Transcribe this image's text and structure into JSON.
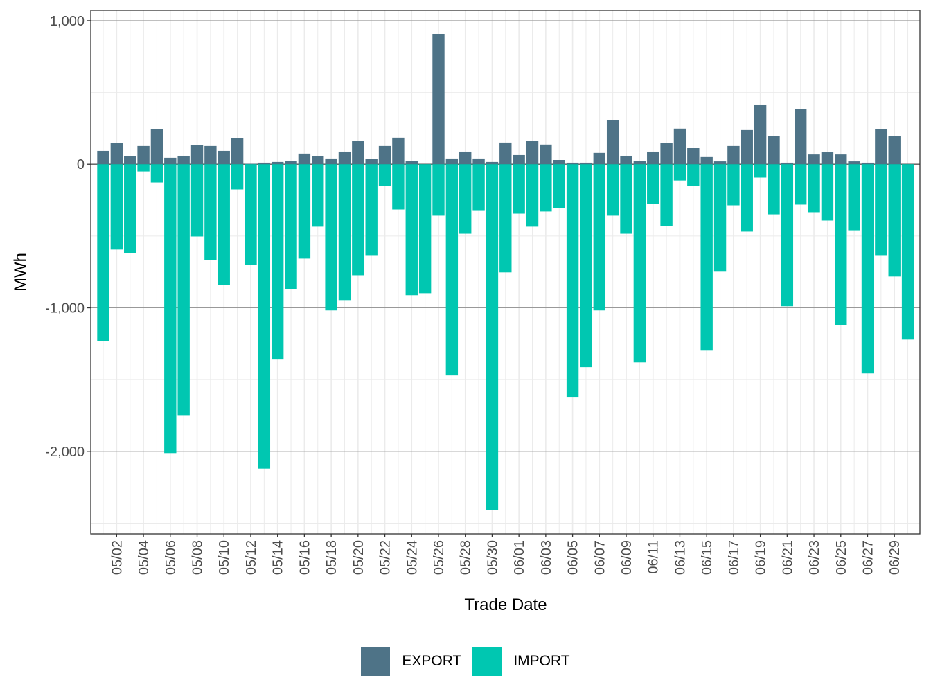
{
  "chart_data": {
    "type": "bar",
    "stacked": "diverging",
    "title": "",
    "xlabel": "Trade Date",
    "ylabel": "MWh",
    "ylim": [
      -2575,
      1072
    ],
    "y_ticks": [
      1000,
      0,
      -1000,
      -2000
    ],
    "y_tick_labels": [
      "1,000",
      "0",
      "-1,000",
      "-2,000"
    ],
    "grid": true,
    "legend_position": "bottom",
    "x_tick_labels": [
      "05/02",
      "05/04",
      "05/06",
      "05/08",
      "05/10",
      "05/12",
      "05/14",
      "05/16",
      "05/18",
      "05/20",
      "05/22",
      "05/24",
      "05/26",
      "05/28",
      "05/30",
      "06/01",
      "06/03",
      "06/05",
      "06/07",
      "06/09",
      "06/11",
      "06/13",
      "06/15",
      "06/17",
      "06/19",
      "06/21",
      "06/23",
      "06/25",
      "06/27",
      "06/29"
    ],
    "categories": [
      "05/01",
      "05/02",
      "05/03",
      "05/04",
      "05/05",
      "05/06",
      "05/07",
      "05/08",
      "05/09",
      "05/10",
      "05/11",
      "05/12",
      "05/13",
      "05/14",
      "05/15",
      "05/16",
      "05/17",
      "05/18",
      "05/19",
      "05/20",
      "05/21",
      "05/22",
      "05/23",
      "05/24",
      "05/25",
      "05/26",
      "05/27",
      "05/28",
      "05/29",
      "05/30",
      "05/31",
      "06/01",
      "06/02",
      "06/03",
      "06/04",
      "06/05",
      "06/06",
      "06/07",
      "06/08",
      "06/09",
      "06/10",
      "06/11",
      "06/12",
      "06/13",
      "06/14",
      "06/15",
      "06/16",
      "06/17",
      "06/18",
      "06/19",
      "06/20",
      "06/21",
      "06/22",
      "06/23",
      "06/24",
      "06/25",
      "06/26",
      "06/27",
      "06/28",
      "06/29",
      "06/30"
    ],
    "series": [
      {
        "name": "EXPORT",
        "color": "#4E7387",
        "values": [
          93,
          146,
          55,
          127,
          243,
          45,
          59,
          132,
          127,
          93,
          180,
          3,
          11,
          16,
          25,
          74,
          55,
          40,
          88,
          161,
          35,
          127,
          185,
          25,
          0,
          908,
          40,
          88,
          40,
          16,
          151,
          64,
          161,
          137,
          30,
          11,
          11,
          79,
          305,
          59,
          21,
          88,
          146,
          248,
          112,
          50,
          20,
          127,
          238,
          416,
          194,
          11,
          383,
          68,
          83,
          68,
          20,
          11,
          243,
          194,
          0
        ]
      },
      {
        "name": "IMPORT",
        "color": "#00C7B1",
        "values": [
          -1230,
          -594,
          -618,
          -50,
          -127,
          -2012,
          -1752,
          -503,
          -666,
          -840,
          -175,
          -700,
          -2120,
          -1360,
          -869,
          -657,
          -435,
          -1018,
          -946,
          -773,
          -633,
          -151,
          -315,
          -912,
          -898,
          -358,
          -1471,
          -484,
          -320,
          -2410,
          -753,
          -344,
          -435,
          -329,
          -305,
          -1625,
          -1413,
          -1018,
          -358,
          -484,
          -1380,
          -276,
          -431,
          -113,
          -151,
          -1298,
          -748,
          -286,
          -469,
          -93,
          -349,
          -989,
          -281,
          -334,
          -392,
          -1119,
          -460,
          -1457,
          -633,
          -782,
          -1221
        ]
      }
    ]
  },
  "legend": {
    "items": [
      {
        "label": "EXPORT",
        "color": "#4E7387"
      },
      {
        "label": "IMPORT",
        "color": "#00C7B1"
      }
    ]
  }
}
